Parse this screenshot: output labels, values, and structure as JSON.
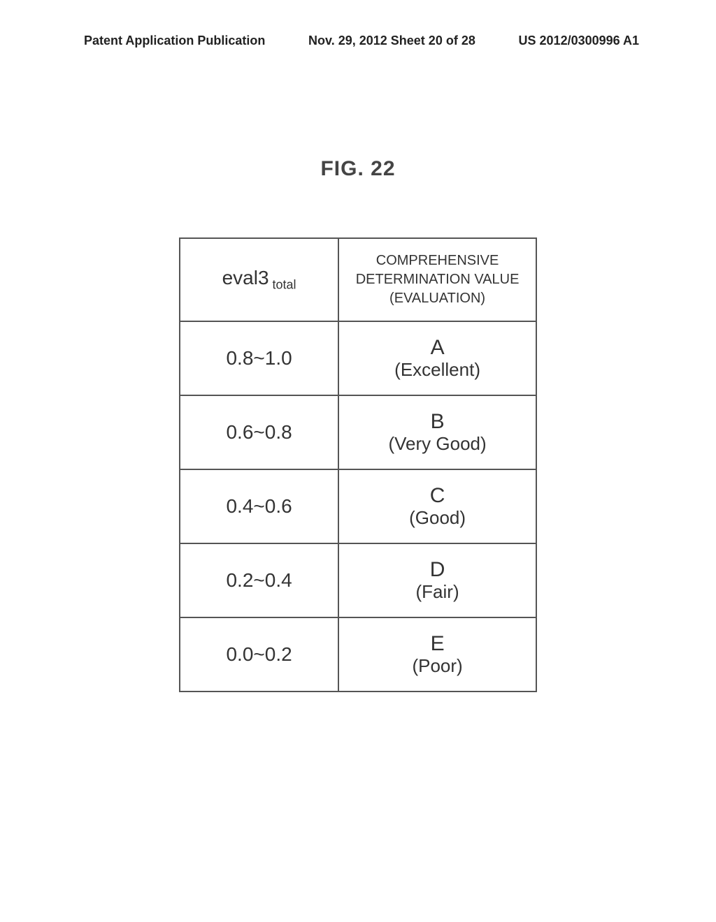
{
  "header": {
    "left": "Patent Application Publication",
    "center": "Nov. 29, 2012  Sheet 20 of 28",
    "right": "US 2012/0300996 A1"
  },
  "figure_label": "FIG. 22",
  "table": {
    "header_left_main": "eval3",
    "header_left_sub": " total",
    "header_right_l1": "COMPREHENSIVE",
    "header_right_l2": "DETERMINATION VALUE",
    "header_right_l3": "(EVALUATION)",
    "rows": [
      {
        "range": "0.8~1.0",
        "grade": "A",
        "label": "(Excellent)"
      },
      {
        "range": "0.6~0.8",
        "grade": "B",
        "label": "(Very Good)"
      },
      {
        "range": "0.4~0.6",
        "grade": "C",
        "label": "(Good)"
      },
      {
        "range": "0.2~0.4",
        "grade": "D",
        "label": "(Fair)"
      },
      {
        "range": "0.0~0.2",
        "grade": "E",
        "label": "(Poor)"
      }
    ]
  }
}
